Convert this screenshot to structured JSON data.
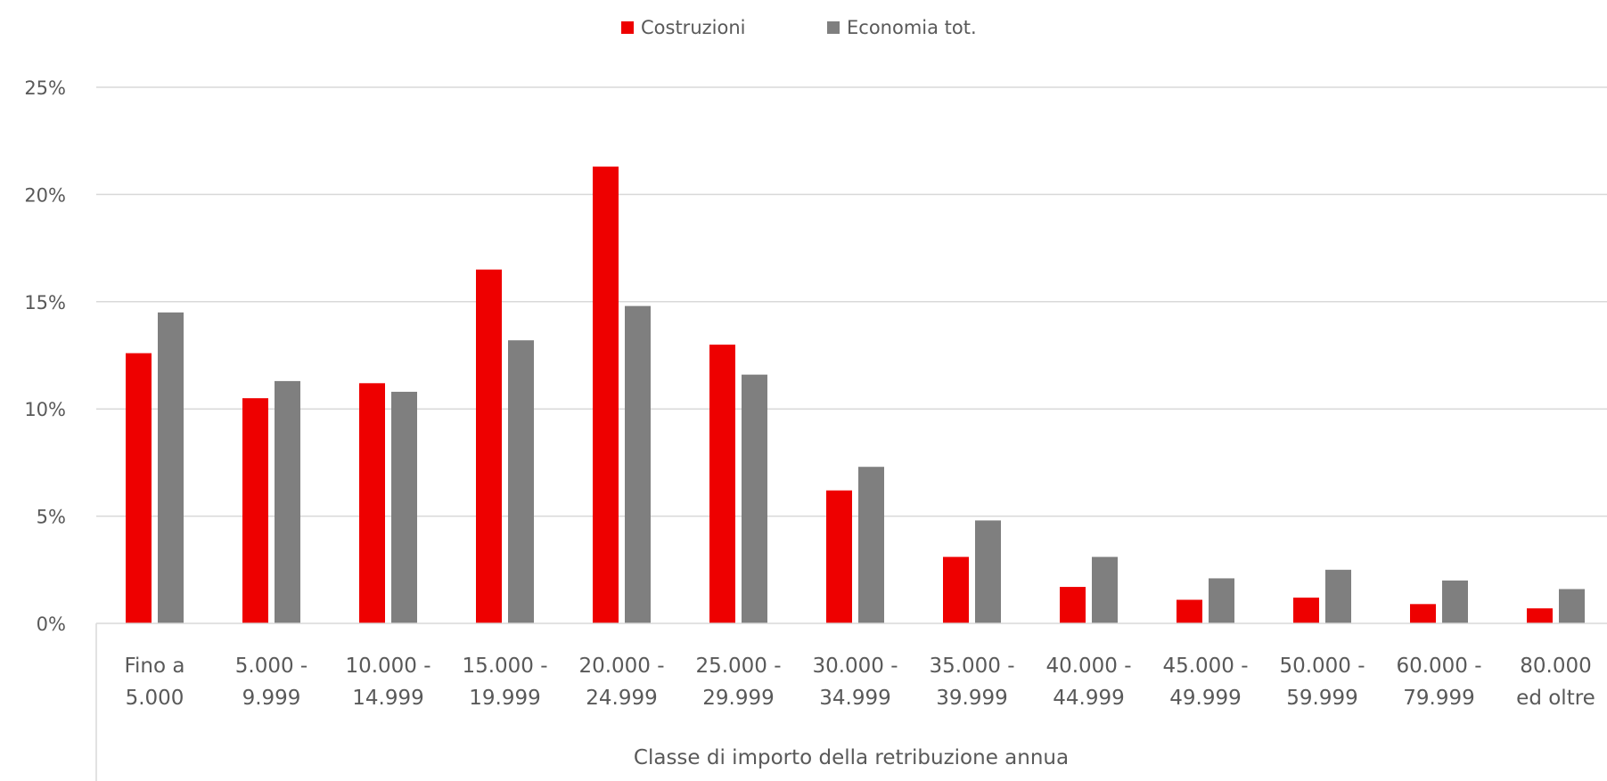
{
  "chart_data": {
    "type": "bar",
    "title": "",
    "xlabel": "Classe di importo della retribuzione annua",
    "ylabel": "",
    "ylim": [
      0,
      25
    ],
    "y_ticks": [
      "0%",
      "5%",
      "10%",
      "15%",
      "20%",
      "25%"
    ],
    "y_tick_values": [
      0,
      5,
      10,
      15,
      20,
      25
    ],
    "grid": true,
    "legend_position": "top-center",
    "categories": [
      [
        "Fino a",
        "5.000"
      ],
      [
        "5.000 -",
        "9.999"
      ],
      [
        "10.000 -",
        "14.999"
      ],
      [
        "15.000 -",
        "19.999"
      ],
      [
        "20.000 -",
        "24.999"
      ],
      [
        "25.000 -",
        "29.999"
      ],
      [
        "30.000 -",
        "34.999"
      ],
      [
        "35.000 -",
        "39.999"
      ],
      [
        "40.000 -",
        "44.999"
      ],
      [
        "45.000 -",
        "49.999"
      ],
      [
        "50.000 -",
        "59.999"
      ],
      [
        "60.000 -",
        "79.999"
      ],
      [
        "80.000",
        "ed oltre"
      ]
    ],
    "series": [
      {
        "name": "Costruzioni",
        "color": "#ee0000",
        "values": [
          12.6,
          10.5,
          11.2,
          16.5,
          21.3,
          13.0,
          6.2,
          3.1,
          1.7,
          1.1,
          1.2,
          0.9,
          0.7
        ]
      },
      {
        "name": "Economia tot.",
        "color": "#7f7f7f",
        "values": [
          14.5,
          11.3,
          10.8,
          13.2,
          14.8,
          11.6,
          7.3,
          4.8,
          3.1,
          2.1,
          2.5,
          2.0,
          1.6
        ]
      }
    ]
  }
}
